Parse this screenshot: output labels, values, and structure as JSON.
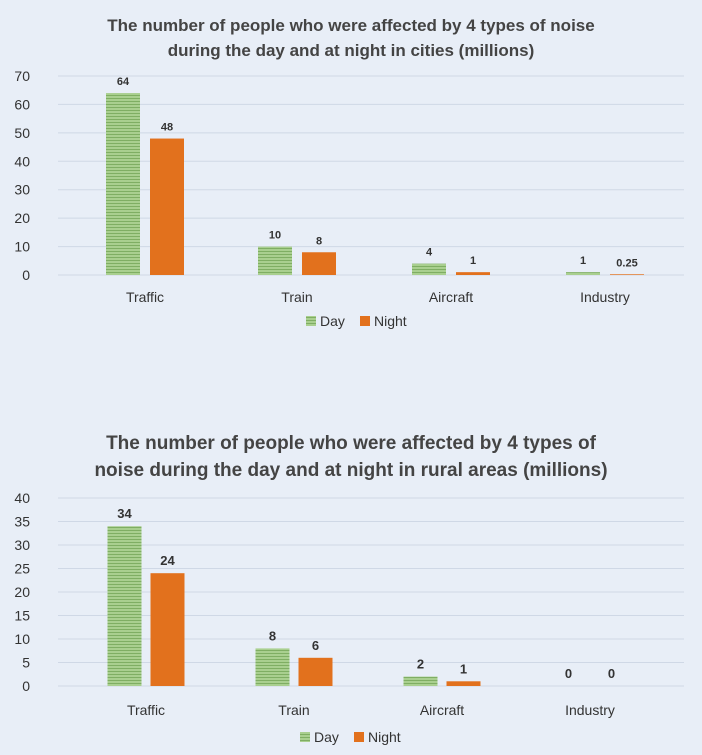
{
  "chart_data": [
    {
      "type": "bar",
      "title_lines": [
        "The number of people who were affected by 4 types of noise",
        "during the day and at night in cities (millions)"
      ],
      "categories": [
        "Traffic",
        "Train",
        "Aircraft",
        "Industry"
      ],
      "series": [
        {
          "name": "Day",
          "values": [
            64,
            10,
            4,
            1
          ],
          "labels": [
            "64",
            "10",
            "4",
            "1"
          ]
        },
        {
          "name": "Night",
          "values": [
            48,
            8,
            1,
            0.25
          ],
          "labels": [
            "48",
            "8",
            "1",
            "0.25"
          ]
        }
      ],
      "ylim": [
        0,
        70
      ],
      "yticks": [
        "0",
        "10",
        "20",
        "30",
        "40",
        "50",
        "60",
        "70"
      ],
      "grid": true,
      "legend_placement": "bottom-center"
    },
    {
      "type": "bar",
      "title_lines": [
        "The number of people who were affected by 4 types of",
        "noise during the day and at night in rural areas (millions)"
      ],
      "categories": [
        "Traffic",
        "Train",
        "Aircraft",
        "Industry"
      ],
      "series": [
        {
          "name": "Day",
          "values": [
            34,
            8,
            2,
            0
          ],
          "labels": [
            "34",
            "8",
            "2",
            "0"
          ]
        },
        {
          "name": "Night",
          "values": [
            24,
            6,
            1,
            0
          ],
          "labels": [
            "24",
            "6",
            "1",
            "0"
          ]
        }
      ],
      "ylim": [
        0,
        40
      ],
      "yticks": [
        "0",
        "5",
        "10",
        "15",
        "20",
        "25",
        "30",
        "35",
        "40"
      ],
      "grid": true,
      "legend_placement": "bottom-center"
    }
  ],
  "colors": {
    "day": "#8fbc72",
    "night": "#e2711d"
  }
}
